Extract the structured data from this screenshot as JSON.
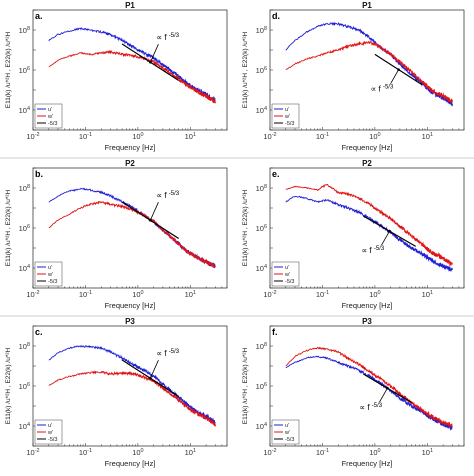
{
  "chart_data": [
    {
      "type": "line",
      "panel_label": "a.",
      "title": "P1",
      "xlabel": "Frequency [Hz]",
      "ylabel": "E11(k) /u*²H , E22(k) /u*²H",
      "xscale": "log",
      "yscale": "log",
      "xlim": [
        0.01,
        50
      ],
      "ylim": [
        1000,
        1000000000
      ],
      "xticks": [
        "10-2",
        "10-1",
        "100",
        "101"
      ],
      "yticks": [
        "104",
        "106",
        "108"
      ],
      "annotation": "∝ f -5/3",
      "legend": {
        "position": "bottom-left",
        "entries": [
          "u'",
          "w'",
          "-5/3"
        ]
      },
      "series": [
        {
          "name": "u'",
          "color": "#1f1fd6",
          "x": [
            0.02,
            0.03,
            0.05,
            0.08,
            0.12,
            0.2,
            0.3,
            0.5,
            0.8,
            1.2,
            2,
            3,
            5,
            8,
            12,
            20,
            30
          ],
          "y": [
            30000000,
            60000000,
            90000000,
            120000000,
            100000000,
            80000000,
            60000000,
            30000000,
            14000000,
            8000000,
            4000000,
            1800000,
            700000,
            250000,
            120000,
            60000,
            30000
          ]
        },
        {
          "name": "w'",
          "color": "#e01414",
          "x": [
            0.02,
            0.03,
            0.05,
            0.08,
            0.12,
            0.2,
            0.3,
            0.5,
            0.8,
            1.2,
            2,
            3,
            5,
            8,
            12,
            20,
            30
          ],
          "y": [
            1500000,
            3000000,
            5000000,
            7000000,
            6000000,
            7000000,
            8000000,
            6000000,
            5000000,
            4000000,
            2500000,
            1300000,
            500000,
            200000,
            100000,
            50000,
            25000
          ]
        },
        {
          "name": "-5/3",
          "color": "#000000",
          "x": [
            0.5,
            6
          ],
          "y": [
            20000000,
            300000
          ]
        }
      ]
    },
    {
      "type": "line",
      "panel_label": "b.",
      "title": "P2",
      "xlabel": "Frequency [Hz]",
      "ylabel": "E11(k) /u*²H , E22(k) /u*²H",
      "xscale": "log",
      "yscale": "log",
      "xlim": [
        0.01,
        50
      ],
      "ylim": [
        1000,
        1000000000
      ],
      "xticks": [
        "10-2",
        "10-1",
        "100",
        "101"
      ],
      "yticks": [
        "104",
        "106",
        "108"
      ],
      "annotation": "∝ f -5/3",
      "legend": {
        "position": "bottom-left",
        "entries": [
          "u'",
          "w'",
          "-5/3"
        ]
      },
      "series": [
        {
          "name": "u'",
          "color": "#1f1fd6",
          "x": [
            0.02,
            0.03,
            0.05,
            0.08,
            0.12,
            0.2,
            0.3,
            0.5,
            0.8,
            1.2,
            2,
            3,
            5,
            8,
            12,
            20,
            30
          ],
          "y": [
            20000000,
            40000000,
            70000000,
            90000000,
            80000000,
            60000000,
            40000000,
            20000000,
            10000000,
            5000000,
            2000000,
            800000,
            250000,
            80000,
            40000,
            20000,
            12000
          ]
        },
        {
          "name": "w'",
          "color": "#e01414",
          "x": [
            0.02,
            0.03,
            0.05,
            0.08,
            0.12,
            0.2,
            0.3,
            0.5,
            0.8,
            1.2,
            2,
            3,
            5,
            8,
            12,
            20,
            30
          ],
          "y": [
            1000000,
            2500000,
            5000000,
            10000000,
            15000000,
            20000000,
            15000000,
            12000000,
            8000000,
            5000000,
            2000000,
            800000,
            250000,
            80000,
            40000,
            20000,
            12000
          ]
        },
        {
          "name": "-5/3",
          "color": "#000000",
          "x": [
            0.5,
            6
          ],
          "y": [
            20000000,
            300000
          ]
        }
      ]
    },
    {
      "type": "line",
      "panel_label": "c.",
      "title": "P3",
      "xlabel": "Frequency [Hz]",
      "ylabel": "E11(k) /u*²H , E22(k) /u*²H",
      "xscale": "log",
      "yscale": "log",
      "xlim": [
        0.01,
        50
      ],
      "ylim": [
        1000,
        1000000000
      ],
      "xticks": [
        "10-2",
        "10-1",
        "100",
        "101"
      ],
      "yticks": [
        "104",
        "106",
        "108"
      ],
      "annotation": "∝ f -5/3",
      "legend": {
        "position": "bottom-left",
        "entries": [
          "u'",
          "w'",
          "-5/3"
        ]
      },
      "series": [
        {
          "name": "u'",
          "color": "#1f1fd6",
          "x": [
            0.02,
            0.03,
            0.05,
            0.08,
            0.12,
            0.2,
            0.3,
            0.5,
            0.8,
            1.2,
            2,
            3,
            5,
            8,
            12,
            20,
            30
          ],
          "y": [
            20000000,
            45000000,
            80000000,
            100000000,
            90000000,
            80000000,
            50000000,
            25000000,
            12000000,
            7000000,
            3000000,
            1200000,
            400000,
            150000,
            60000,
            30000,
            15000
          ]
        },
        {
          "name": "w'",
          "color": "#e01414",
          "x": [
            0.02,
            0.03,
            0.05,
            0.08,
            0.12,
            0.2,
            0.3,
            0.5,
            0.8,
            1.2,
            2,
            3,
            5,
            8,
            12,
            20,
            30
          ],
          "y": [
            1000000,
            2000000,
            3000000,
            4000000,
            4500000,
            5000000,
            4000000,
            4500000,
            4000000,
            3000000,
            1800000,
            800000,
            300000,
            100000,
            50000,
            25000,
            12000
          ]
        },
        {
          "name": "-5/3",
          "color": "#000000",
          "x": [
            0.5,
            6
          ],
          "y": [
            20000000,
            300000
          ]
        }
      ]
    },
    {
      "type": "line",
      "panel_label": "d.",
      "title": "P1",
      "xlabel": "Frequency [Hz]",
      "ylabel": "E11(k) /u*²H , E22(k) /u*²H",
      "xscale": "log",
      "yscale": "log",
      "xlim": [
        0.01,
        50
      ],
      "ylim": [
        1000,
        1000000000
      ],
      "xticks": [
        "10-2",
        "10-1",
        "100",
        "101"
      ],
      "yticks": [
        "104",
        "106",
        "108"
      ],
      "annotation": "∝ f -5/3",
      "legend": {
        "position": "bottom-left",
        "entries": [
          "u'",
          "w'",
          "-5/3"
        ]
      },
      "series": [
        {
          "name": "u'",
          "color": "#1f1fd6",
          "x": [
            0.02,
            0.03,
            0.05,
            0.08,
            0.12,
            0.2,
            0.3,
            0.5,
            0.8,
            1.2,
            2,
            3,
            5,
            8,
            12,
            20,
            30
          ],
          "y": [
            10000000,
            30000000,
            80000000,
            150000000,
            200000000,
            200000000,
            150000000,
            100000000,
            40000000,
            15000000,
            6000000,
            2000000,
            600000,
            200000,
            80000,
            40000,
            20000
          ]
        },
        {
          "name": "w'",
          "color": "#e01414",
          "x": [
            0.02,
            0.03,
            0.05,
            0.08,
            0.12,
            0.2,
            0.3,
            0.5,
            0.8,
            1.2,
            2,
            3,
            5,
            8,
            12,
            20,
            30
          ],
          "y": [
            1000000,
            2000000,
            3500000,
            5000000,
            7000000,
            10000000,
            15000000,
            20000000,
            25000000,
            15000000,
            6000000,
            2500000,
            800000,
            250000,
            100000,
            50000,
            25000
          ]
        },
        {
          "name": "-5/3",
          "color": "#000000",
          "x": [
            1,
            8
          ],
          "y": [
            6000000,
            180000
          ]
        }
      ]
    },
    {
      "type": "line",
      "panel_label": "e.",
      "title": "P2",
      "xlabel": "Frequency [Hz]",
      "ylabel": "E11(k) /u*²H , E22(k) /u*²H",
      "xscale": "log",
      "yscale": "log",
      "xlim": [
        0.01,
        50
      ],
      "ylim": [
        1000,
        1000000000
      ],
      "xticks": [
        "10-2",
        "10-1",
        "100",
        "101"
      ],
      "yticks": [
        "104",
        "106",
        "108"
      ],
      "annotation": "∝ f -5/3",
      "legend": {
        "position": "bottom-left",
        "entries": [
          "u'",
          "w'",
          "-5/3"
        ]
      },
      "series": [
        {
          "name": "u'",
          "color": "#1f1fd6",
          "x": [
            0.02,
            0.03,
            0.05,
            0.08,
            0.12,
            0.2,
            0.3,
            0.5,
            0.8,
            1.2,
            2,
            3,
            5,
            8,
            12,
            20,
            30
          ],
          "y": [
            20000000,
            40000000,
            30000000,
            20000000,
            25000000,
            15000000,
            10000000,
            6000000,
            3000000,
            1500000,
            600000,
            250000,
            100000,
            50000,
            25000,
            12000,
            8000
          ]
        },
        {
          "name": "w'",
          "color": "#e01414",
          "x": [
            0.02,
            0.03,
            0.05,
            0.08,
            0.12,
            0.2,
            0.3,
            0.5,
            0.8,
            1.2,
            2,
            3,
            5,
            8,
            12,
            20,
            30
          ],
          "y": [
            80000000,
            120000000,
            100000000,
            80000000,
            150000000,
            60000000,
            50000000,
            30000000,
            15000000,
            7000000,
            3000000,
            1200000,
            400000,
            150000,
            60000,
            30000,
            15000
          ]
        },
        {
          "name": "-5/3",
          "color": "#000000",
          "x": [
            0.6,
            6
          ],
          "y": [
            4000000,
            120000
          ]
        }
      ]
    },
    {
      "type": "line",
      "panel_label": "f.",
      "title": "P3",
      "xlabel": "Frequency [Hz]",
      "ylabel": "E11(k) /u*²H , E22(k) /u*²H",
      "xscale": "log",
      "yscale": "log",
      "xlim": [
        0.01,
        50
      ],
      "ylim": [
        1000,
        1000000000
      ],
      "xticks": [
        "10-2",
        "10-1",
        "100",
        "101"
      ],
      "yticks": [
        "104",
        "106",
        "108"
      ],
      "annotation": "∝ f -5/3",
      "legend": {
        "position": "bottom-left",
        "entries": [
          "u'",
          "w'",
          "-5/3"
        ]
      },
      "series": [
        {
          "name": "u'",
          "color": "#1f1fd6",
          "x": [
            0.02,
            0.03,
            0.05,
            0.08,
            0.12,
            0.2,
            0.3,
            0.5,
            0.8,
            1.2,
            2,
            3,
            5,
            8,
            12,
            20,
            30
          ],
          "y": [
            8000000,
            15000000,
            25000000,
            30000000,
            25000000,
            15000000,
            10000000,
            6000000,
            3000000,
            1500000,
            600000,
            250000,
            100000,
            50000,
            25000,
            12000,
            8000
          ]
        },
        {
          "name": "w'",
          "color": "#e01414",
          "x": [
            0.02,
            0.03,
            0.05,
            0.08,
            0.12,
            0.2,
            0.3,
            0.5,
            0.8,
            1.2,
            2,
            3,
            5,
            8,
            12,
            20,
            30
          ],
          "y": [
            10000000,
            30000000,
            60000000,
            80000000,
            70000000,
            50000000,
            25000000,
            12000000,
            5000000,
            2500000,
            1000000,
            400000,
            150000,
            60000,
            30000,
            15000,
            10000
          ]
        },
        {
          "name": "-5/3",
          "color": "#000000",
          "x": [
            0.6,
            5
          ],
          "y": [
            4000000,
            150000
          ]
        }
      ]
    }
  ]
}
